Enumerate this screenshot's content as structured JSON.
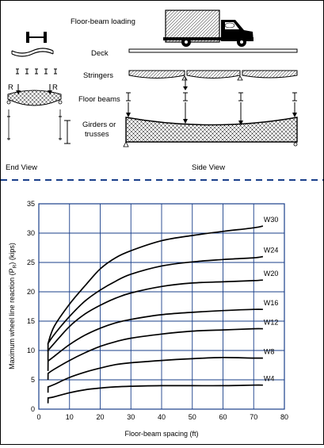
{
  "diagram": {
    "labels": {
      "loading": "Floor-beam loading",
      "deck": "Deck",
      "stringers": "Stringers",
      "floor_beams": "Floor beams",
      "girders_line1": "Girders or",
      "girders_line2": "trusses",
      "end_view": "End View",
      "side_view": "Side View",
      "r_left": "R",
      "r_right": "R"
    }
  },
  "chart_data": {
    "type": "line",
    "xlabel": "Floor-beam spacing (ft)",
    "ylabel_pre": "Maximum wheel line reaction (P",
    "ylabel_sub": "R",
    "ylabel_post": ") (kips)",
    "xlim": [
      0,
      80
    ],
    "ylim": [
      0,
      35
    ],
    "xticks": [
      0,
      10,
      20,
      30,
      40,
      50,
      60,
      70,
      80
    ],
    "yticks": [
      0,
      5,
      10,
      15,
      20,
      25,
      30,
      35
    ],
    "grid": true,
    "series": [
      {
        "name": "W4",
        "x": [
          3,
          3.01,
          5,
          10,
          15,
          20,
          25,
          30,
          40,
          50,
          60,
          70,
          73
        ],
        "y": [
          1,
          1.9,
          2.1,
          2.8,
          3.3,
          3.6,
          3.8,
          3.9,
          4.0,
          4.0,
          4.0,
          4.1,
          4.1
        ]
      },
      {
        "name": "W8",
        "x": [
          3,
          3.01,
          5,
          10,
          15,
          20,
          25,
          30,
          40,
          50,
          60,
          70,
          73
        ],
        "y": [
          2.8,
          3.8,
          4.2,
          5.4,
          6.3,
          7.0,
          7.6,
          7.9,
          8.3,
          8.6,
          8.8,
          8.7,
          8.7
        ]
      },
      {
        "name": "W12",
        "x": [
          3,
          3.01,
          5,
          10,
          15,
          20,
          25,
          30,
          40,
          50,
          60,
          70,
          73
        ],
        "y": [
          5,
          6.1,
          6.8,
          8.3,
          9.6,
          10.7,
          11.5,
          12.1,
          12.8,
          13.3,
          13.5,
          13.7,
          13.7
        ]
      },
      {
        "name": "W16",
        "x": [
          3,
          3.01,
          5,
          10,
          15,
          20,
          25,
          30,
          40,
          50,
          60,
          70,
          73
        ],
        "y": [
          6.5,
          8.2,
          9.0,
          11.0,
          12.6,
          13.8,
          14.7,
          15.3,
          16.1,
          16.5,
          16.8,
          17.0,
          17.0
        ]
      },
      {
        "name": "W20",
        "x": [
          3,
          3.01,
          5,
          10,
          15,
          20,
          25,
          30,
          40,
          50,
          60,
          70,
          73
        ],
        "y": [
          8.3,
          10.0,
          11.2,
          14.1,
          16.2,
          17.7,
          18.9,
          19.8,
          20.9,
          21.5,
          21.7,
          21.9,
          22.0
        ]
      },
      {
        "name": "W24",
        "x": [
          3,
          3.01,
          5,
          10,
          15,
          20,
          25,
          30,
          40,
          50,
          60,
          70,
          73
        ],
        "y": [
          9.8,
          11.2,
          12.7,
          15.8,
          18.4,
          20.3,
          21.8,
          23.0,
          24.4,
          25.1,
          25.5,
          25.8,
          26.0
        ]
      },
      {
        "name": "W30",
        "x": [
          3,
          3.01,
          5,
          10,
          15,
          20,
          25,
          30,
          40,
          50,
          60,
          70,
          73
        ],
        "y": [
          11,
          11.2,
          14.1,
          17.9,
          21.0,
          23.9,
          25.8,
          27.0,
          28.7,
          29.6,
          30.3,
          30.9,
          31.2
        ]
      }
    ]
  }
}
